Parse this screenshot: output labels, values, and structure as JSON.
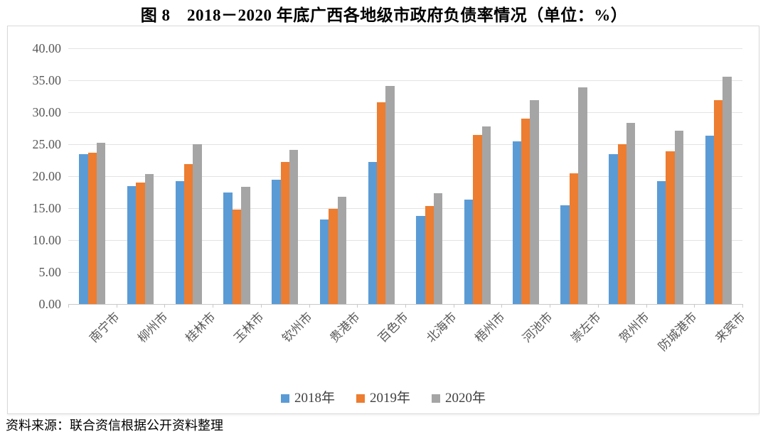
{
  "figure": {
    "title": "图 8　2018－2020 年底广西各地级市政府负债率情况（单位：%）",
    "source_note": "资料来源：联合资信根据公开资料整理"
  },
  "chart_data": {
    "type": "bar",
    "title": "图 8　2018－2020 年底广西各地级市政府负债率情况（单位：%）",
    "unit": "%",
    "categories": [
      "南宁市",
      "柳州市",
      "桂林市",
      "玉林市",
      "钦州市",
      "贵港市",
      "百色市",
      "北海市",
      "梧州市",
      "河池市",
      "崇左市",
      "贺州市",
      "防城港市",
      "来宾市"
    ],
    "series": [
      {
        "name": "2018年",
        "color": "#5B9BD5",
        "values": [
          23.4,
          18.5,
          19.2,
          17.4,
          19.5,
          13.2,
          22.2,
          13.8,
          16.3,
          25.5,
          15.4,
          23.5,
          19.2,
          26.3
        ]
      },
      {
        "name": "2019年",
        "color": "#ED7D31",
        "values": [
          23.7,
          19.0,
          21.9,
          14.8,
          22.2,
          14.9,
          31.6,
          15.3,
          26.5,
          29.0,
          20.5,
          25.0,
          23.9,
          31.9
        ]
      },
      {
        "name": "2020年",
        "color": "#A5A5A5",
        "values": [
          25.2,
          20.3,
          25.0,
          18.3,
          24.1,
          16.8,
          34.1,
          17.3,
          27.8,
          31.9,
          33.9,
          28.3,
          27.1,
          35.6
        ]
      }
    ],
    "ylim": [
      0,
      40
    ],
    "ytick_step": 5,
    "ytick_labels": [
      "0.00",
      "5.00",
      "10.00",
      "15.00",
      "20.00",
      "25.00",
      "30.00",
      "35.00",
      "40.00"
    ],
    "grid": true,
    "legend_position": "bottom",
    "xlabel": "",
    "ylabel": ""
  }
}
